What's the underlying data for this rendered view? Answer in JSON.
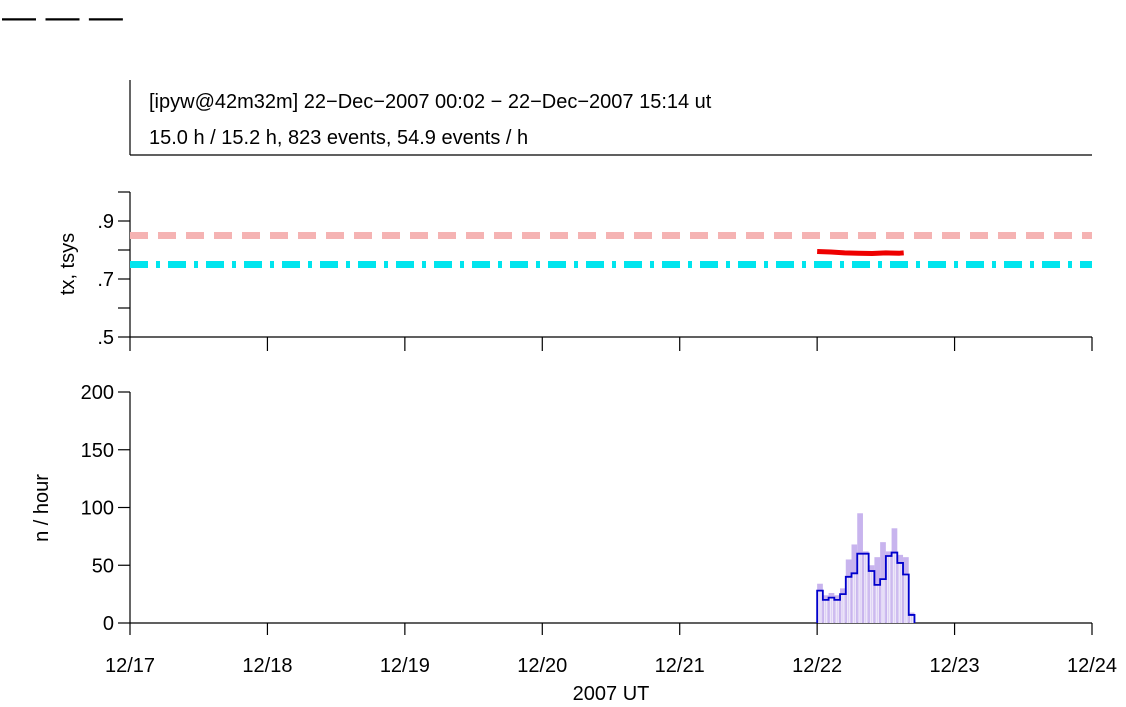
{
  "header": {
    "line1": "[ipyw@42m32m] 22−Dec−2007 00:02 − 22−Dec−2007 15:14 ut",
    "line2": "15.0 h / 15.2 h, 823 events, 54.9 events / h"
  },
  "colors": {
    "tx_ref": "#f5b3b3",
    "tsys_ref": "#00e5ee",
    "tx_series": "#ee0000",
    "hist_fill": "#c8b4ee",
    "hist_line": "#0000cc",
    "axis": "#000000"
  },
  "chart_data": [
    {
      "type": "line",
      "ylabel": "tx, tsys",
      "ylim": [
        0.5,
        1.0
      ],
      "xlim_days": [
        17,
        24
      ],
      "ytick_labels": [
        ".5",
        ".7",
        ".9"
      ],
      "ytick_values": [
        0.5,
        0.7,
        0.9
      ],
      "minor_ytick_values": [
        0.6,
        0.8,
        1.0
      ],
      "reference_lines": [
        {
          "y": 0.85,
          "style": "dashed",
          "color": "#f5b3b3"
        },
        {
          "y": 0.75,
          "style": "dash-dot",
          "color": "#00e5ee"
        }
      ],
      "series": [
        {
          "color": "#ee0000",
          "points": [
            [
              22.0,
              0.795
            ],
            [
              22.1,
              0.793
            ],
            [
              22.2,
              0.79
            ],
            [
              22.3,
              0.789
            ],
            [
              22.4,
              0.788
            ],
            [
              22.5,
              0.79
            ],
            [
              22.6,
              0.789
            ],
            [
              22.63,
              0.79
            ]
          ]
        }
      ]
    },
    {
      "type": "bar",
      "ylabel": "n / hour",
      "xlabel": "2007 UT",
      "ylim": [
        0,
        200
      ],
      "xlim_days": [
        17,
        24
      ],
      "ytick_labels": [
        "0",
        "50",
        "100",
        "150",
        "200"
      ],
      "ytick_values": [
        0,
        50,
        100,
        150,
        200
      ],
      "xtick_labels": [
        "12/17",
        "12/18",
        "12/19",
        "12/20",
        "12/21",
        "12/22",
        "12/23",
        "12/24"
      ],
      "xtick_values": [
        17,
        18,
        19,
        20,
        21,
        22,
        23,
        24
      ],
      "bin_start_day": 22.0,
      "bin_width_hours": 1,
      "fill_values": [
        34,
        24,
        26,
        24,
        30,
        55,
        68,
        95,
        62,
        50,
        57,
        70,
        62,
        82,
        59,
        57,
        9
      ],
      "line_values": [
        28,
        20,
        22,
        20,
        25,
        40,
        43,
        60,
        60,
        45,
        33,
        38,
        58,
        61,
        52,
        42,
        7
      ]
    }
  ],
  "legend_fragment": "— — —"
}
